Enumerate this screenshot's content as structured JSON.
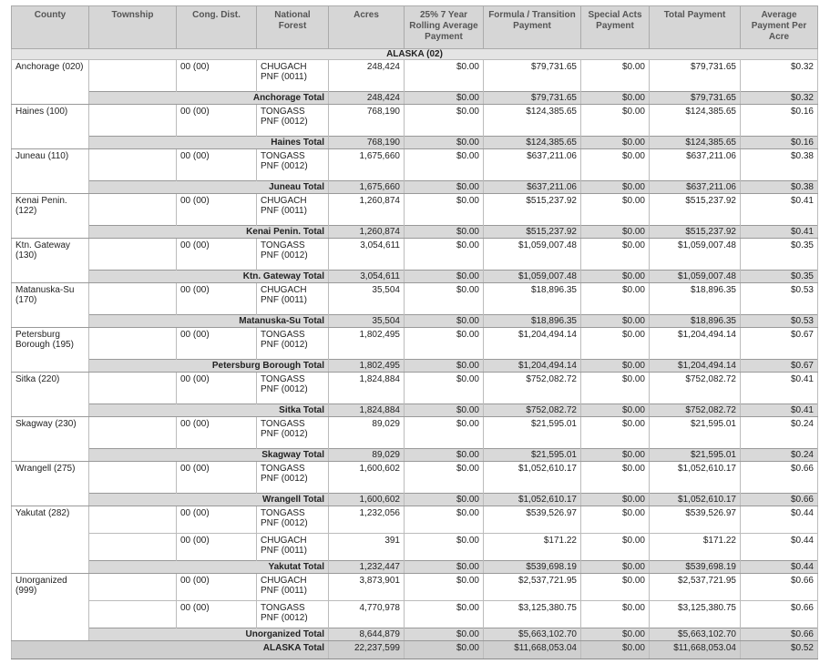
{
  "table": {
    "columns": [
      "County",
      "Township",
      "Cong. Dist.",
      "National Forest",
      "Acres",
      "25% 7 Year Rolling Average Payment",
      "Formula / Transition Payment",
      "Special Acts Payment",
      "Total Payment",
      "Average Payment Per Acre"
    ],
    "state": "ALASKA (02)",
    "groups": [
      {
        "county": "Anchorage (020)",
        "rows": [
          {
            "cong": "00 (00)",
            "forest": "CHUGACH PNF (0011)",
            "acres": "248,424",
            "rolling": "$0.00",
            "formula": "$79,731.65",
            "special": "$0.00",
            "total": "$79,731.65",
            "avg": "$0.32"
          }
        ],
        "total": {
          "label": "Anchorage Total",
          "acres": "248,424",
          "rolling": "$0.00",
          "formula": "$79,731.65",
          "special": "$0.00",
          "total": "$79,731.65",
          "avg": "$0.32"
        }
      },
      {
        "county": "Haines (100)",
        "rows": [
          {
            "cong": "00 (00)",
            "forest": "TONGASS PNF (0012)",
            "acres": "768,190",
            "rolling": "$0.00",
            "formula": "$124,385.65",
            "special": "$0.00",
            "total": "$124,385.65",
            "avg": "$0.16"
          }
        ],
        "total": {
          "label": "Haines Total",
          "acres": "768,190",
          "rolling": "$0.00",
          "formula": "$124,385.65",
          "special": "$0.00",
          "total": "$124,385.65",
          "avg": "$0.16"
        }
      },
      {
        "county": "Juneau (110)",
        "rows": [
          {
            "cong": "00 (00)",
            "forest": "TONGASS PNF (0012)",
            "acres": "1,675,660",
            "rolling": "$0.00",
            "formula": "$637,211.06",
            "special": "$0.00",
            "total": "$637,211.06",
            "avg": "$0.38"
          }
        ],
        "total": {
          "label": "Juneau Total",
          "acres": "1,675,660",
          "rolling": "$0.00",
          "formula": "$637,211.06",
          "special": "$0.00",
          "total": "$637,211.06",
          "avg": "$0.38"
        }
      },
      {
        "county": "Kenai Penin. (122)",
        "rows": [
          {
            "cong": "00 (00)",
            "forest": "CHUGACH PNF (0011)",
            "acres": "1,260,874",
            "rolling": "$0.00",
            "formula": "$515,237.92",
            "special": "$0.00",
            "total": "$515,237.92",
            "avg": "$0.41"
          }
        ],
        "total": {
          "label": "Kenai Penin. Total",
          "acres": "1,260,874",
          "rolling": "$0.00",
          "formula": "$515,237.92",
          "special": "$0.00",
          "total": "$515,237.92",
          "avg": "$0.41"
        }
      },
      {
        "county": "Ktn. Gateway (130)",
        "rows": [
          {
            "cong": "00 (00)",
            "forest": "TONGASS PNF (0012)",
            "acres": "3,054,611",
            "rolling": "$0.00",
            "formula": "$1,059,007.48",
            "special": "$0.00",
            "total": "$1,059,007.48",
            "avg": "$0.35"
          }
        ],
        "total": {
          "label": "Ktn. Gateway Total",
          "acres": "3,054,611",
          "rolling": "$0.00",
          "formula": "$1,059,007.48",
          "special": "$0.00",
          "total": "$1,059,007.48",
          "avg": "$0.35"
        }
      },
      {
        "county": "Matanuska-Su (170)",
        "rows": [
          {
            "cong": "00 (00)",
            "forest": "CHUGACH PNF (0011)",
            "acres": "35,504",
            "rolling": "$0.00",
            "formula": "$18,896.35",
            "special": "$0.00",
            "total": "$18,896.35",
            "avg": "$0.53"
          }
        ],
        "total": {
          "label": "Matanuska-Su Total",
          "acres": "35,504",
          "rolling": "$0.00",
          "formula": "$18,896.35",
          "special": "$0.00",
          "total": "$18,896.35",
          "avg": "$0.53"
        }
      },
      {
        "county": "Petersburg Borough (195)",
        "rows": [
          {
            "cong": "00 (00)",
            "forest": "TONGASS PNF (0012)",
            "acres": "1,802,495",
            "rolling": "$0.00",
            "formula": "$1,204,494.14",
            "special": "$0.00",
            "total": "$1,204,494.14",
            "avg": "$0.67"
          }
        ],
        "total": {
          "label": "Petersburg Borough Total",
          "acres": "1,802,495",
          "rolling": "$0.00",
          "formula": "$1,204,494.14",
          "special": "$0.00",
          "total": "$1,204,494.14",
          "avg": "$0.67"
        }
      },
      {
        "county": "Sitka (220)",
        "rows": [
          {
            "cong": "00 (00)",
            "forest": "TONGASS PNF (0012)",
            "acres": "1,824,884",
            "rolling": "$0.00",
            "formula": "$752,082.72",
            "special": "$0.00",
            "total": "$752,082.72",
            "avg": "$0.41"
          }
        ],
        "total": {
          "label": "Sitka Total",
          "acres": "1,824,884",
          "rolling": "$0.00",
          "formula": "$752,082.72",
          "special": "$0.00",
          "total": "$752,082.72",
          "avg": "$0.41"
        }
      },
      {
        "county": "Skagway (230)",
        "rows": [
          {
            "cong": "00 (00)",
            "forest": "TONGASS PNF (0012)",
            "acres": "89,029",
            "rolling": "$0.00",
            "formula": "$21,595.01",
            "special": "$0.00",
            "total": "$21,595.01",
            "avg": "$0.24"
          }
        ],
        "total": {
          "label": "Skagway Total",
          "acres": "89,029",
          "rolling": "$0.00",
          "formula": "$21,595.01",
          "special": "$0.00",
          "total": "$21,595.01",
          "avg": "$0.24"
        }
      },
      {
        "county": "Wrangell (275)",
        "rows": [
          {
            "cong": "00 (00)",
            "forest": "TONGASS PNF (0012)",
            "acres": "1,600,602",
            "rolling": "$0.00",
            "formula": "$1,052,610.17",
            "special": "$0.00",
            "total": "$1,052,610.17",
            "avg": "$0.66"
          }
        ],
        "total": {
          "label": "Wrangell Total",
          "acres": "1,600,602",
          "rolling": "$0.00",
          "formula": "$1,052,610.17",
          "special": "$0.00",
          "total": "$1,052,610.17",
          "avg": "$0.66"
        }
      },
      {
        "county": "Yakutat (282)",
        "rows": [
          {
            "cong": "00 (00)",
            "forest": "TONGASS PNF (0012)",
            "acres": "1,232,056",
            "rolling": "$0.00",
            "formula": "$539,526.97",
            "special": "$0.00",
            "total": "$539,526.97",
            "avg": "$0.44"
          },
          {
            "cong": "00 (00)",
            "forest": "CHUGACH PNF (0011)",
            "acres": "391",
            "rolling": "$0.00",
            "formula": "$171.22",
            "special": "$0.00",
            "total": "$171.22",
            "avg": "$0.44"
          }
        ],
        "total": {
          "label": "Yakutat Total",
          "acres": "1,232,447",
          "rolling": "$0.00",
          "formula": "$539,698.19",
          "special": "$0.00",
          "total": "$539,698.19",
          "avg": "$0.44"
        }
      },
      {
        "county": "Unorganized (999)",
        "rows": [
          {
            "cong": "00 (00)",
            "forest": "CHUGACH PNF (0011)",
            "acres": "3,873,901",
            "rolling": "$0.00",
            "formula": "$2,537,721.95",
            "special": "$0.00",
            "total": "$2,537,721.95",
            "avg": "$0.66"
          },
          {
            "cong": "00 (00)",
            "forest": "TONGASS PNF (0012)",
            "acres": "4,770,978",
            "rolling": "$0.00",
            "formula": "$3,125,380.75",
            "special": "$0.00",
            "total": "$3,125,380.75",
            "avg": "$0.66"
          }
        ],
        "total": {
          "label": "Unorganized Total",
          "acres": "8,644,879",
          "rolling": "$0.00",
          "formula": "$5,663,102.70",
          "special": "$0.00",
          "total": "$5,663,102.70",
          "avg": "$0.66"
        }
      }
    ],
    "grand_total": {
      "label": "ALASKA Total",
      "acres": "22,237,599",
      "rolling": "$0.00",
      "formula": "$11,668,053.04",
      "special": "$0.00",
      "total": "$11,668,053.04",
      "avg": "$0.52"
    }
  }
}
